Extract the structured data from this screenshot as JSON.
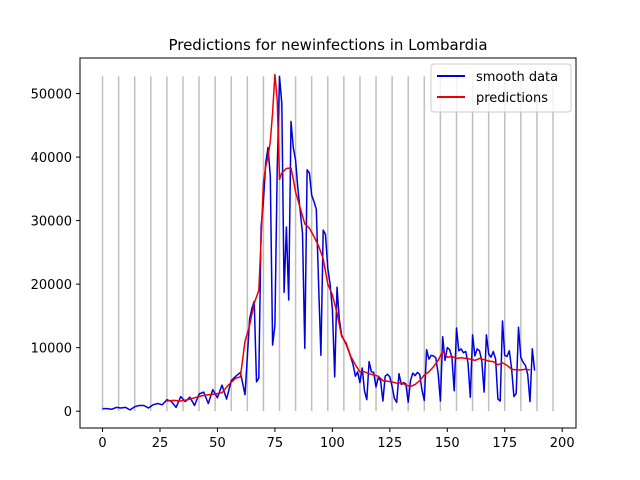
{
  "chart_data": {
    "type": "line",
    "title": "Predictions for newinfections in Lombardia",
    "xlabel": "",
    "ylabel": "",
    "xlim": [
      -9.8,
      206
    ],
    "ylim": [
      -2650,
      55600
    ],
    "xticks": [
      0,
      25,
      50,
      75,
      100,
      125,
      150,
      175,
      200
    ],
    "yticks": [
      0,
      10000,
      20000,
      30000,
      40000,
      50000
    ],
    "xtick_labels": [
      "0",
      "25",
      "50",
      "75",
      "100",
      "125",
      "150",
      "175",
      "200"
    ],
    "ytick_labels": [
      "0",
      "10000",
      "20000",
      "30000",
      "40000",
      "50000"
    ],
    "grid": false,
    "legend_position": "top-right",
    "vertical_lines": {
      "x": [
        0,
        7,
        14,
        21,
        28,
        35,
        42,
        49,
        56,
        63,
        70,
        77,
        84,
        91,
        98,
        105,
        112,
        119,
        126,
        133,
        140,
        147,
        154,
        161,
        168,
        175,
        182,
        189,
        196
      ],
      "ymin": 0,
      "ymax": 52700,
      "color": "#bfbfbf"
    },
    "series": [
      {
        "name": "smooth data",
        "color": "#0000dd",
        "points": [
          [
            0,
            400
          ],
          [
            2,
            400
          ],
          [
            4,
            300
          ],
          [
            6,
            600
          ],
          [
            8,
            500
          ],
          [
            10,
            600
          ],
          [
            12,
            200
          ],
          [
            14,
            700
          ],
          [
            16,
            900
          ],
          [
            18,
            900
          ],
          [
            20,
            500
          ],
          [
            22,
            1000
          ],
          [
            24,
            1200
          ],
          [
            26,
            1000
          ],
          [
            28,
            1800
          ],
          [
            30,
            1500
          ],
          [
            32,
            600
          ],
          [
            34,
            2300
          ],
          [
            36,
            1500
          ],
          [
            38,
            2200
          ],
          [
            40,
            900
          ],
          [
            42,
            2700
          ],
          [
            44,
            3000
          ],
          [
            46,
            1200
          ],
          [
            48,
            3400
          ],
          [
            50,
            2100
          ],
          [
            52,
            4100
          ],
          [
            54,
            1900
          ],
          [
            56,
            4800
          ],
          [
            58,
            5500
          ],
          [
            60,
            6100
          ],
          [
            62,
            2600
          ],
          [
            63,
            8500
          ],
          [
            64,
            14500
          ],
          [
            65,
            16200
          ],
          [
            66,
            17300
          ],
          [
            67,
            4600
          ],
          [
            68,
            5200
          ],
          [
            69,
            29000
          ],
          [
            70,
            33000
          ],
          [
            71,
            39000
          ],
          [
            72,
            41500
          ],
          [
            73,
            37000
          ],
          [
            74,
            10400
          ],
          [
            75,
            13500
          ],
          [
            76,
            38000
          ],
          [
            77,
            52700
          ],
          [
            78,
            48500
          ],
          [
            79,
            18700
          ],
          [
            80,
            29000
          ],
          [
            81,
            17500
          ],
          [
            82,
            45600
          ],
          [
            83,
            41500
          ],
          [
            84,
            39500
          ],
          [
            85,
            35000
          ],
          [
            87,
            28000
          ],
          [
            88,
            9900
          ],
          [
            89,
            38000
          ],
          [
            90,
            37500
          ],
          [
            91,
            34000
          ],
          [
            92,
            33000
          ],
          [
            93,
            31800
          ],
          [
            94,
            20000
          ],
          [
            95,
            8800
          ],
          [
            96,
            28500
          ],
          [
            97,
            27800
          ],
          [
            98,
            22500
          ],
          [
            99,
            20000
          ],
          [
            100,
            16000
          ],
          [
            101,
            5400
          ],
          [
            102,
            19500
          ],
          [
            103,
            14500
          ],
          [
            104,
            12000
          ],
          [
            106,
            10500
          ],
          [
            107,
            9500
          ],
          [
            108,
            8500
          ],
          [
            109,
            7300
          ],
          [
            110,
            5500
          ],
          [
            111,
            6200
          ],
          [
            112,
            4500
          ],
          [
            113,
            6800
          ],
          [
            114,
            3200
          ],
          [
            115,
            1800
          ],
          [
            116,
            7800
          ],
          [
            117,
            6200
          ],
          [
            118,
            6100
          ],
          [
            119,
            3800
          ],
          [
            120,
            5300
          ],
          [
            121,
            4800
          ],
          [
            122,
            1600
          ],
          [
            123,
            5500
          ],
          [
            124,
            5800
          ],
          [
            125,
            5400
          ],
          [
            126,
            3900
          ],
          [
            127,
            2000
          ],
          [
            128,
            1400
          ],
          [
            129,
            5900
          ],
          [
            130,
            4200
          ],
          [
            131,
            4500
          ],
          [
            132,
            4300
          ],
          [
            133,
            1400
          ],
          [
            134,
            4800
          ],
          [
            135,
            6000
          ],
          [
            136,
            5600
          ],
          [
            137,
            6100
          ],
          [
            138,
            5800
          ],
          [
            139,
            3300
          ],
          [
            140,
            1700
          ],
          [
            141,
            9700
          ],
          [
            142,
            8200
          ],
          [
            143,
            8800
          ],
          [
            144,
            8700
          ],
          [
            145,
            8400
          ],
          [
            146,
            6000
          ],
          [
            147,
            1600
          ],
          [
            148,
            11700
          ],
          [
            149,
            8000
          ],
          [
            150,
            10000
          ],
          [
            151,
            9700
          ],
          [
            152,
            8500
          ],
          [
            153,
            3200
          ],
          [
            154,
            13100
          ],
          [
            155,
            9500
          ],
          [
            156,
            9800
          ],
          [
            157,
            9200
          ],
          [
            158,
            9400
          ],
          [
            159,
            7600
          ],
          [
            160,
            2200
          ],
          [
            161,
            12000
          ],
          [
            162,
            8700
          ],
          [
            163,
            9800
          ],
          [
            164,
            9500
          ],
          [
            165,
            7900
          ],
          [
            166,
            3000
          ],
          [
            167,
            12000
          ],
          [
            168,
            9000
          ],
          [
            169,
            8500
          ],
          [
            170,
            9400
          ],
          [
            171,
            8200
          ],
          [
            172,
            1900
          ],
          [
            173,
            1600
          ],
          [
            174,
            14200
          ],
          [
            175,
            8800
          ],
          [
            176,
            8600
          ],
          [
            177,
            9500
          ],
          [
            178,
            6700
          ],
          [
            179,
            2300
          ],
          [
            180,
            2800
          ],
          [
            181,
            13200
          ],
          [
            182,
            8500
          ],
          [
            183,
            7700
          ],
          [
            184,
            7200
          ],
          [
            185,
            5800
          ],
          [
            186,
            1500
          ],
          [
            187,
            9800
          ],
          [
            188,
            6400
          ]
        ]
      },
      {
        "name": "predictions",
        "color": "#ee0000",
        "points": [
          [
            28,
            1600
          ],
          [
            31,
            1700
          ],
          [
            34,
            1600
          ],
          [
            37,
            1800
          ],
          [
            40,
            2100
          ],
          [
            43,
            2400
          ],
          [
            46,
            2600
          ],
          [
            49,
            2700
          ],
          [
            52,
            2900
          ],
          [
            55,
            4200
          ],
          [
            58,
            5200
          ],
          [
            60,
            5400
          ],
          [
            62,
            11000
          ],
          [
            64,
            13500
          ],
          [
            66,
            17000
          ],
          [
            68,
            19000
          ],
          [
            69,
            27000
          ],
          [
            70,
            36000
          ],
          [
            71,
            38500
          ],
          [
            72,
            40000
          ],
          [
            73,
            42500
          ],
          [
            74,
            47000
          ],
          [
            75,
            53000
          ],
          [
            76,
            49000
          ],
          [
            77,
            36500
          ],
          [
            78,
            37500
          ],
          [
            80,
            38200
          ],
          [
            82,
            38300
          ],
          [
            83,
            36500
          ],
          [
            84,
            34500
          ],
          [
            86,
            32000
          ],
          [
            88,
            29500
          ],
          [
            90,
            28800
          ],
          [
            92,
            27500
          ],
          [
            94,
            26000
          ],
          [
            96,
            24000
          ],
          [
            98,
            20000
          ],
          [
            100,
            18300
          ],
          [
            102,
            15500
          ],
          [
            104,
            11800
          ],
          [
            106,
            10700
          ],
          [
            108,
            8600
          ],
          [
            110,
            7300
          ],
          [
            112,
            6200
          ],
          [
            114,
            6200
          ],
          [
            116,
            5900
          ],
          [
            118,
            5700
          ],
          [
            120,
            5500
          ],
          [
            122,
            4800
          ],
          [
            124,
            4700
          ],
          [
            126,
            4600
          ],
          [
            128,
            4400
          ],
          [
            130,
            4500
          ],
          [
            132,
            4100
          ],
          [
            134,
            3900
          ],
          [
            136,
            4200
          ],
          [
            138,
            4800
          ],
          [
            140,
            5700
          ],
          [
            142,
            6200
          ],
          [
            144,
            7000
          ],
          [
            146,
            8000
          ],
          [
            148,
            9400
          ],
          [
            150,
            8500
          ],
          [
            152,
            8600
          ],
          [
            154,
            8300
          ],
          [
            156,
            8400
          ],
          [
            158,
            8300
          ],
          [
            160,
            8200
          ],
          [
            162,
            8000
          ],
          [
            164,
            8300
          ],
          [
            166,
            8100
          ],
          [
            168,
            7900
          ],
          [
            170,
            7800
          ],
          [
            172,
            7300
          ],
          [
            174,
            7600
          ],
          [
            176,
            7200
          ],
          [
            178,
            6600
          ],
          [
            180,
            6500
          ],
          [
            182,
            6500
          ],
          [
            184,
            6600
          ],
          [
            186,
            6500
          ]
        ]
      }
    ]
  }
}
